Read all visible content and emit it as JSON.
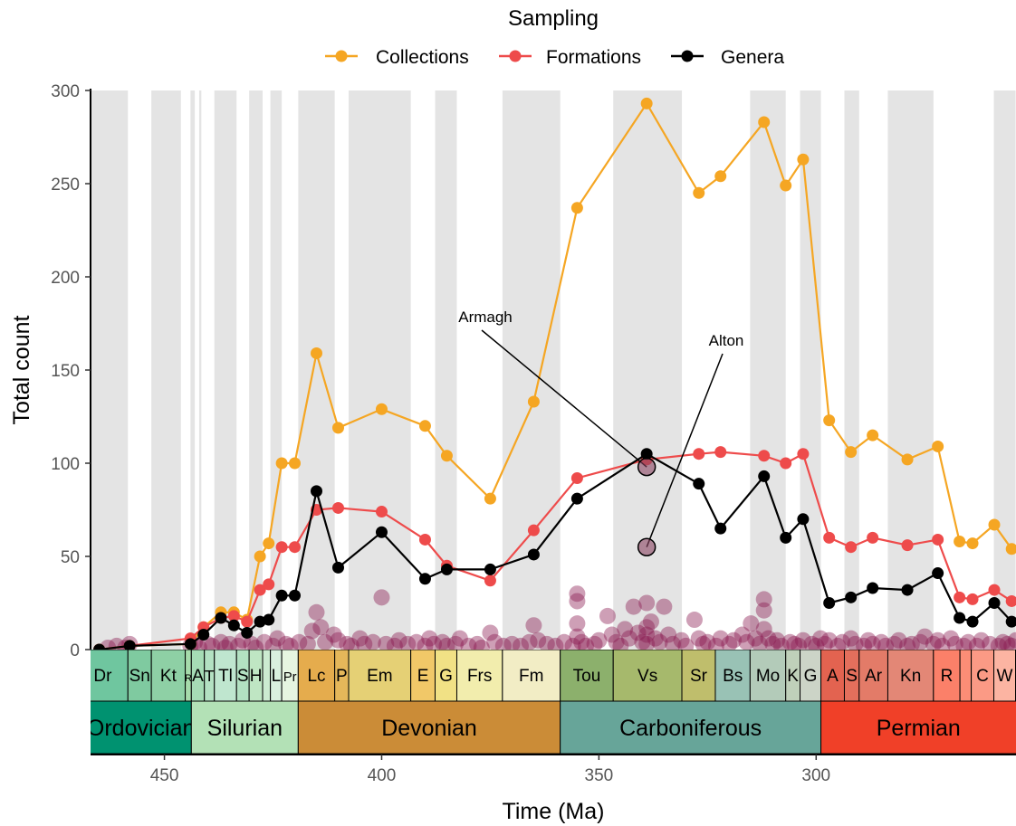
{
  "chart_data": {
    "type": "line",
    "xlabel": "Time (Ma)",
    "ylabel": "Total count",
    "xlim": [
      467,
      254
    ],
    "ylim": [
      0,
      300
    ],
    "x_reversed": true,
    "xticks": [
      450,
      400,
      350,
      300
    ],
    "yticks": [
      0,
      50,
      100,
      150,
      200,
      250,
      300
    ],
    "legend": {
      "title": "Sampling",
      "position": "top"
    },
    "series": [
      {
        "name": "Collections",
        "color": "#F5A623",
        "x": [
          465,
          458,
          444,
          441,
          437,
          434,
          431,
          428,
          426,
          423,
          420,
          415,
          410,
          400,
          390,
          385,
          375,
          365,
          355,
          339,
          327,
          322,
          312,
          307,
          303,
          297,
          292,
          287,
          279,
          272,
          267,
          264,
          259,
          255
        ],
        "y": [
          0,
          2,
          3,
          12,
          20,
          20,
          16,
          50,
          57,
          100,
          100,
          159,
          119,
          129,
          120,
          104,
          81,
          133,
          237,
          293,
          245,
          254,
          283,
          249,
          263,
          123,
          106,
          115,
          102,
          109,
          58,
          57,
          67,
          54
        ]
      },
      {
        "name": "Formations",
        "color": "#EE4B4B",
        "x": [
          465,
          458,
          444,
          441,
          437,
          434,
          431,
          428,
          426,
          423,
          420,
          415,
          410,
          400,
          390,
          385,
          375,
          365,
          355,
          339,
          327,
          322,
          312,
          307,
          303,
          297,
          292,
          287,
          279,
          272,
          267,
          264,
          259,
          255
        ],
        "y": [
          0,
          2,
          6,
          12,
          17,
          18,
          15,
          32,
          35,
          55,
          55,
          75,
          76,
          74,
          59,
          45,
          37,
          64,
          92,
          102,
          105,
          106,
          104,
          100,
          105,
          60,
          55,
          60,
          56,
          59,
          28,
          27,
          32,
          26
        ]
      },
      {
        "name": "Genera",
        "color": "#000000",
        "x": [
          465,
          458,
          444,
          441,
          437,
          434,
          431,
          428,
          426,
          423,
          420,
          415,
          410,
          400,
          390,
          385,
          375,
          365,
          355,
          339,
          327,
          322,
          312,
          307,
          303,
          297,
          292,
          287,
          279,
          272,
          267,
          264,
          259,
          255
        ],
        "y": [
          0,
          2,
          3,
          8,
          17,
          13,
          9,
          15,
          16,
          29,
          29,
          85,
          44,
          63,
          38,
          43,
          43,
          51,
          81,
          105,
          89,
          65,
          93,
          60,
          70,
          25,
          28,
          33,
          32,
          41,
          17,
          15,
          25,
          15
        ]
      }
    ],
    "highlighted_points": [
      {
        "label": "Armagh",
        "x": 339,
        "y": 98
      },
      {
        "label": "Alton",
        "x": 339,
        "y": 55
      }
    ],
    "scatter_points": [
      [
        463,
        1
      ],
      [
        461,
        2
      ],
      [
        459,
        1
      ],
      [
        458,
        3
      ],
      [
        444,
        2
      ],
      [
        443,
        4
      ],
      [
        442,
        1
      ],
      [
        440,
        3
      ],
      [
        439,
        2
      ],
      [
        437,
        4
      ],
      [
        436,
        1
      ],
      [
        435,
        3
      ],
      [
        433,
        2
      ],
      [
        432,
        5
      ],
      [
        430,
        3
      ],
      [
        429,
        1
      ],
      [
        427,
        4
      ],
      [
        425,
        2
      ],
      [
        424,
        6
      ],
      [
        422,
        3
      ],
      [
        421,
        2
      ],
      [
        419,
        4
      ],
      [
        417,
        3
      ],
      [
        416,
        10
      ],
      [
        415,
        20
      ],
      [
        414,
        12
      ],
      [
        413,
        4
      ],
      [
        411,
        8
      ],
      [
        410,
        5
      ],
      [
        408,
        3
      ],
      [
        407,
        2
      ],
      [
        405,
        6
      ],
      [
        404,
        3
      ],
      [
        402,
        4
      ],
      [
        400,
        28
      ],
      [
        399,
        3
      ],
      [
        397,
        2
      ],
      [
        396,
        5
      ],
      [
        394,
        3
      ],
      [
        392,
        4
      ],
      [
        390,
        2
      ],
      [
        389,
        6
      ],
      [
        388,
        3
      ],
      [
        386,
        4
      ],
      [
        385,
        2
      ],
      [
        383,
        3
      ],
      [
        382,
        6
      ],
      [
        380,
        2
      ],
      [
        378,
        3
      ],
      [
        377,
        1
      ],
      [
        375,
        9
      ],
      [
        374,
        4
      ],
      [
        372,
        2
      ],
      [
        370,
        3
      ],
      [
        368,
        2
      ],
      [
        366,
        4
      ],
      [
        365,
        13
      ],
      [
        364,
        5
      ],
      [
        362,
        3
      ],
      [
        360,
        2
      ],
      [
        358,
        4
      ],
      [
        356,
        2
      ],
      [
        355,
        30
      ],
      [
        355,
        26
      ],
      [
        355,
        14
      ],
      [
        355,
        7
      ],
      [
        354,
        4
      ],
      [
        353,
        2
      ],
      [
        351,
        3
      ],
      [
        350,
        5
      ],
      [
        348,
        18
      ],
      [
        347,
        8
      ],
      [
        346,
        4
      ],
      [
        345,
        2
      ],
      [
        344,
        11
      ],
      [
        343,
        6
      ],
      [
        342,
        23
      ],
      [
        341,
        9
      ],
      [
        340,
        4
      ],
      [
        339,
        25
      ],
      [
        339,
        12
      ],
      [
        339,
        8
      ],
      [
        339,
        3
      ],
      [
        338,
        15
      ],
      [
        337,
        6
      ],
      [
        336,
        4
      ],
      [
        335,
        23
      ],
      [
        334,
        8
      ],
      [
        333,
        3
      ],
      [
        331,
        5
      ],
      [
        330,
        2
      ],
      [
        328,
        16
      ],
      [
        327,
        6
      ],
      [
        326,
        3
      ],
      [
        325,
        4
      ],
      [
        323,
        2
      ],
      [
        322,
        6
      ],
      [
        320,
        3
      ],
      [
        319,
        5
      ],
      [
        317,
        8
      ],
      [
        316,
        4
      ],
      [
        315,
        14
      ],
      [
        314,
        6
      ],
      [
        313,
        3
      ],
      [
        312,
        27
      ],
      [
        312,
        21
      ],
      [
        312,
        11
      ],
      [
        311,
        6
      ],
      [
        310,
        3
      ],
      [
        309,
        5
      ],
      [
        308,
        2
      ],
      [
        306,
        4
      ],
      [
        305,
        3
      ],
      [
        304,
        2
      ],
      [
        303,
        5
      ],
      [
        301,
        3
      ],
      [
        300,
        2
      ],
      [
        299,
        6
      ],
      [
        298,
        3
      ],
      [
        297,
        5
      ],
      [
        295,
        2
      ],
      [
        294,
        4
      ],
      [
        292,
        6
      ],
      [
        291,
        3
      ],
      [
        289,
        2
      ],
      [
        288,
        5
      ],
      [
        287,
        3
      ],
      [
        285,
        4
      ],
      [
        284,
        2
      ],
      [
        282,
        3
      ],
      [
        281,
        5
      ],
      [
        279,
        2
      ],
      [
        278,
        3
      ],
      [
        276,
        4
      ],
      [
        275,
        7
      ],
      [
        273,
        3
      ],
      [
        272,
        5
      ],
      [
        271,
        2
      ],
      [
        269,
        6
      ],
      [
        268,
        3
      ],
      [
        266,
        2
      ],
      [
        265,
        4
      ],
      [
        263,
        2
      ],
      [
        262,
        5
      ],
      [
        260,
        3
      ],
      [
        258,
        2
      ],
      [
        257,
        4
      ],
      [
        256,
        3
      ],
      [
        255,
        2
      ],
      [
        254,
        5
      ]
    ],
    "scatter_color": "#8B1A50",
    "shaded_bands": [
      [
        467,
        458.4
      ],
      [
        453,
        446.2
      ],
      [
        444,
        443
      ],
      [
        442,
        441.5
      ],
      [
        438.5,
        433.4
      ],
      [
        430.5,
        427.4
      ],
      [
        425.6,
        423
      ],
      [
        419.2,
        410.8
      ],
      [
        407.6,
        393.3
      ],
      [
        387.7,
        382.7
      ],
      [
        372.2,
        358.9
      ],
      [
        346.7,
        330.9
      ],
      [
        315.2,
        307
      ],
      [
        303.7,
        298.9
      ],
      [
        293.5,
        290.1
      ],
      [
        283.5,
        273
      ],
      [
        259.1,
        254.1
      ]
    ],
    "stages": [
      {
        "label": "Dr",
        "from": 470,
        "to": 458.4,
        "color": "#6FC69F"
      },
      {
        "label": "Sn",
        "from": 458.4,
        "to": 453,
        "color": "#7FCAA0"
      },
      {
        "label": "Kt",
        "from": 453,
        "to": 445.2,
        "color": "#8ED0A5"
      },
      {
        "label": "R",
        "from": 445.2,
        "to": 443.8,
        "color": "#A6DBAB"
      },
      {
        "label": "A",
        "from": 443.8,
        "to": 440.8,
        "color": "#A6DCB5"
      },
      {
        "label": "T",
        "from": 440.8,
        "to": 438.5,
        "color": "#B3E1C2"
      },
      {
        "label": "Tl",
        "from": 438.5,
        "to": 433.4,
        "color": "#BFE6CF"
      },
      {
        "label": "S",
        "from": 433.4,
        "to": 430.5,
        "color": "#B3E1C2"
      },
      {
        "label": "H",
        "from": 430.5,
        "to": 427.4,
        "color": "#BFE6C3"
      },
      {
        "label": "",
        "from": 427.4,
        "to": 425.6,
        "color": "#CCEBD1"
      },
      {
        "label": "L",
        "from": 425.6,
        "to": 423,
        "color": "#D9F0DF"
      },
      {
        "label": "Pr",
        "from": 423,
        "to": 419.2,
        "color": "#E6F5E1"
      },
      {
        "label": "Lc",
        "from": 419.2,
        "to": 410.8,
        "color": "#E5AC4D"
      },
      {
        "label": "P",
        "from": 410.8,
        "to": 407.6,
        "color": "#E5B75A"
      },
      {
        "label": "Em",
        "from": 407.6,
        "to": 393.3,
        "color": "#E5D075"
      },
      {
        "label": "E",
        "from": 393.3,
        "to": 387.7,
        "color": "#F1C868"
      },
      {
        "label": "G",
        "from": 387.7,
        "to": 382.7,
        "color": "#F1E185"
      },
      {
        "label": "Frs",
        "from": 382.7,
        "to": 372.2,
        "color": "#F2EDAD"
      },
      {
        "label": "Fm",
        "from": 372.2,
        "to": 358.9,
        "color": "#F2EDC5"
      },
      {
        "label": "Tou",
        "from": 358.9,
        "to": 346.7,
        "color": "#8CB06C"
      },
      {
        "label": "Vs",
        "from": 346.7,
        "to": 330.9,
        "color": "#A6B96C"
      },
      {
        "label": "Sr",
        "from": 330.9,
        "to": 323.2,
        "color": "#BFBE6C"
      },
      {
        "label": "Bs",
        "from": 323.2,
        "to": 315.2,
        "color": "#99C2B5"
      },
      {
        "label": "Mo",
        "from": 315.2,
        "to": 307,
        "color": "#B3CBB9"
      },
      {
        "label": "K",
        "from": 307,
        "to": 303.7,
        "color": "#BFD0BA"
      },
      {
        "label": "G",
        "from": 303.7,
        "to": 298.9,
        "color": "#CCD4C7"
      },
      {
        "label": "A",
        "from": 298.9,
        "to": 293.5,
        "color": "#E36350"
      },
      {
        "label": "S",
        "from": 293.5,
        "to": 290.1,
        "color": "#E36F5C"
      },
      {
        "label": "Ar",
        "from": 290.1,
        "to": 283.5,
        "color": "#E37B68"
      },
      {
        "label": "Kn",
        "from": 283.5,
        "to": 273,
        "color": "#E38776"
      },
      {
        "label": "R",
        "from": 273,
        "to": 266.9,
        "color": "#FB8069"
      },
      {
        "label": "",
        "from": 266.9,
        "to": 264.3,
        "color": "#FB8D76"
      },
      {
        "label": "C",
        "from": 264.3,
        "to": 259.1,
        "color": "#FB9A85"
      },
      {
        "label": "W",
        "from": 259.1,
        "to": 254.1,
        "color": "#FCB4A2"
      },
      {
        "label": "",
        "from": 254.1,
        "to": 251.9,
        "color": "#FCC0B2"
      }
    ],
    "periods": [
      {
        "label": "Ordovician",
        "from": 486.9,
        "to": 443.8,
        "color": "#009270"
      },
      {
        "label": "Silurian",
        "from": 443.8,
        "to": 419.2,
        "color": "#B3E1B6"
      },
      {
        "label": "Devonian",
        "from": 419.2,
        "to": 358.9,
        "color": "#CB8C37"
      },
      {
        "label": "Carboniferous",
        "from": 358.9,
        "to": 298.9,
        "color": "#67A599"
      },
      {
        "label": "Permian",
        "from": 298.9,
        "to": 251.9,
        "color": "#F04028"
      }
    ]
  }
}
